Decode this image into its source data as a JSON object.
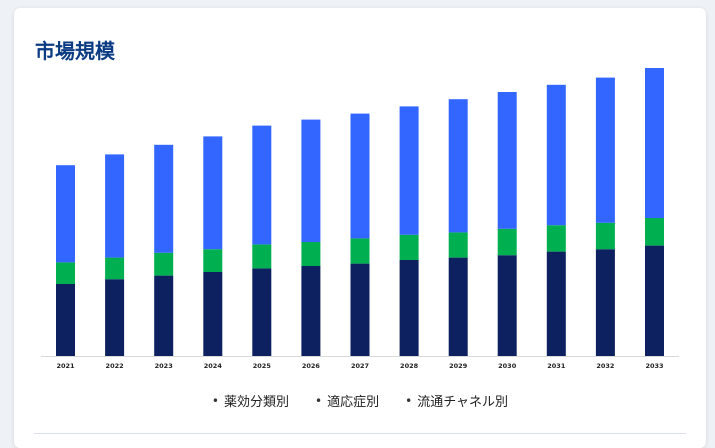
{
  "title": "市場規模",
  "legend": {
    "items": [
      "薬効分類別",
      "適応症別",
      "流通チャネル別"
    ]
  },
  "colors": {
    "bottom": "#0d2160",
    "middle": "#00b050",
    "top": "#3366ff",
    "title": "#0b3b82"
  },
  "chart_data": {
    "type": "bar",
    "stacked": true,
    "title": "市場規模",
    "xlabel": "",
    "ylabel": "",
    "categories": [
      "2021",
      "2022",
      "2023",
      "2024",
      "2025",
      "2026",
      "2027",
      "2028",
      "2029",
      "2030",
      "2031",
      "2032",
      "2033"
    ],
    "series": [
      {
        "name": "",
        "values": [
          60,
          64,
          67,
          70,
          73,
          75,
          77,
          80,
          82,
          84,
          87,
          89,
          92
        ]
      },
      {
        "name": "",
        "values": [
          18,
          18,
          19,
          19,
          20,
          20,
          21,
          21,
          21,
          22,
          22,
          22,
          23
        ]
      },
      {
        "name": "",
        "values": [
          81,
          86,
          90,
          94,
          99,
          102,
          104,
          107,
          111,
          114,
          117,
          121,
          125
        ]
      }
    ],
    "ylim": [
      0,
      240
    ],
    "grid": false,
    "legend_position": "bottom"
  }
}
